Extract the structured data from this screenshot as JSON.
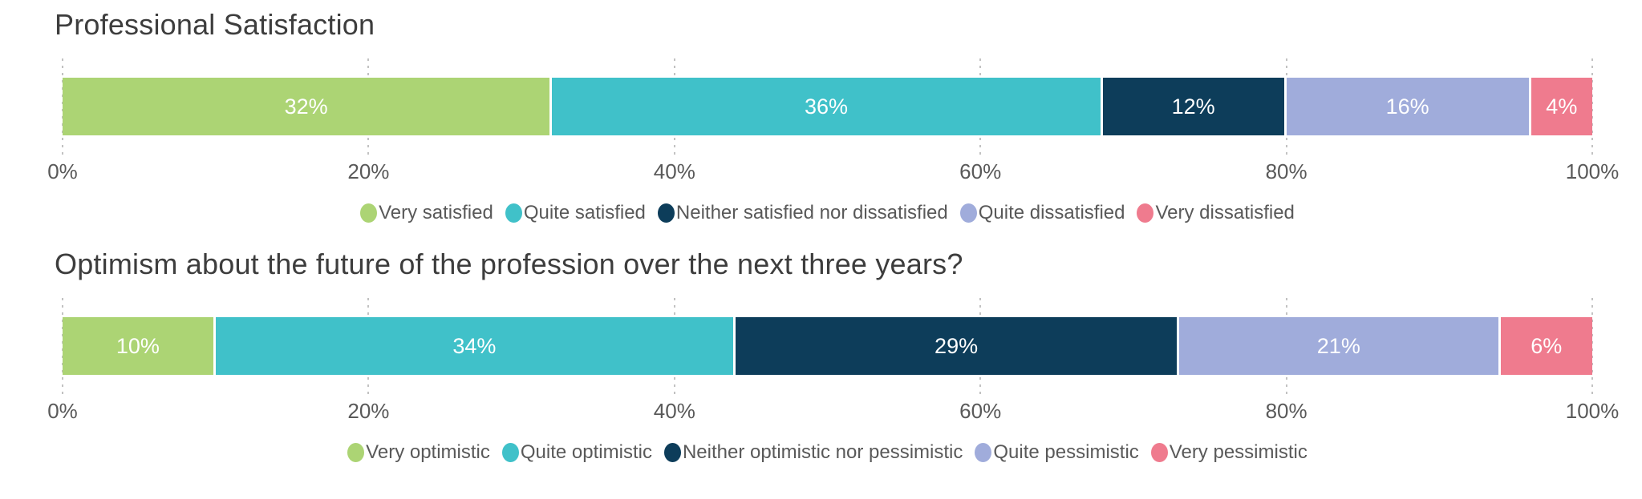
{
  "charts": [
    {
      "title": "Professional Satisfaction",
      "ticks": [
        "0%",
        "20%",
        "40%",
        "60%",
        "80%",
        "100%"
      ],
      "segments": [
        {
          "label": "Very satisfied",
          "value": 32,
          "display": "32%",
          "color": "#acd474"
        },
        {
          "label": "Quite satisfied",
          "value": 36,
          "display": "36%",
          "color": "#40c1c9"
        },
        {
          "label": "Neither satisfied nor dissatisfied",
          "value": 12,
          "display": "12%",
          "color": "#0d3d5a"
        },
        {
          "label": "Quite dissatisfied",
          "value": 16,
          "display": "16%",
          "color": "#a0acdb"
        },
        {
          "label": "Very dissatisfied",
          "value": 4,
          "display": "4%",
          "color": "#ef7b8e"
        }
      ]
    },
    {
      "title": "Optimism about the future of the profession over the next three years?",
      "ticks": [
        "0%",
        "20%",
        "40%",
        "60%",
        "80%",
        "100%"
      ],
      "segments": [
        {
          "label": "Very optimistic",
          "value": 10,
          "display": "10%",
          "color": "#acd474"
        },
        {
          "label": "Quite optimistic",
          "value": 34,
          "display": "34%",
          "color": "#40c1c9"
        },
        {
          "label": "Neither optimistic nor pessimistic",
          "value": 29,
          "display": "29%",
          "color": "#0d3d5a"
        },
        {
          "label": "Quite pessimistic",
          "value": 21,
          "display": "21%",
          "color": "#a0acdb"
        },
        {
          "label": "Very pessimistic",
          "value": 6,
          "display": "6%",
          "color": "#ef7b8e"
        }
      ]
    }
  ],
  "chart_data": [
    {
      "type": "bar",
      "subtype": "stacked-horizontal-single-bar",
      "title": "Professional Satisfaction",
      "categories": [
        "Very satisfied",
        "Quite satisfied",
        "Neither satisfied nor dissatisfied",
        "Quite dissatisfied",
        "Very dissatisfied"
      ],
      "values": [
        32,
        36,
        12,
        16,
        4
      ],
      "value_labels": [
        "32%",
        "36%",
        "12%",
        "16%",
        "4%"
      ],
      "colors": [
        "#acd474",
        "#40c1c9",
        "#0d3d5a",
        "#a0acdb",
        "#ef7b8e"
      ],
      "xlabel": "",
      "ylabel": "",
      "xlim": [
        0,
        100
      ],
      "x_tick_labels": [
        "0%",
        "20%",
        "40%",
        "60%",
        "80%",
        "100%"
      ],
      "grid": "vertical-dotted",
      "legend_position": "bottom-center"
    },
    {
      "type": "bar",
      "subtype": "stacked-horizontal-single-bar",
      "title": "Optimism about the future of the profession over the next three years?",
      "categories": [
        "Very optimistic",
        "Quite optimistic",
        "Neither optimistic nor pessimistic",
        "Quite pessimistic",
        "Very pessimistic"
      ],
      "values": [
        10,
        34,
        29,
        21,
        6
      ],
      "value_labels": [
        "10%",
        "34%",
        "29%",
        "21%",
        "6%"
      ],
      "colors": [
        "#acd474",
        "#40c1c9",
        "#0d3d5a",
        "#a0acdb",
        "#ef7b8e"
      ],
      "xlabel": "",
      "ylabel": "",
      "xlim": [
        0,
        100
      ],
      "x_tick_labels": [
        "0%",
        "20%",
        "40%",
        "60%",
        "80%",
        "100%"
      ],
      "grid": "vertical-dotted",
      "legend_position": "bottom-center"
    }
  ]
}
